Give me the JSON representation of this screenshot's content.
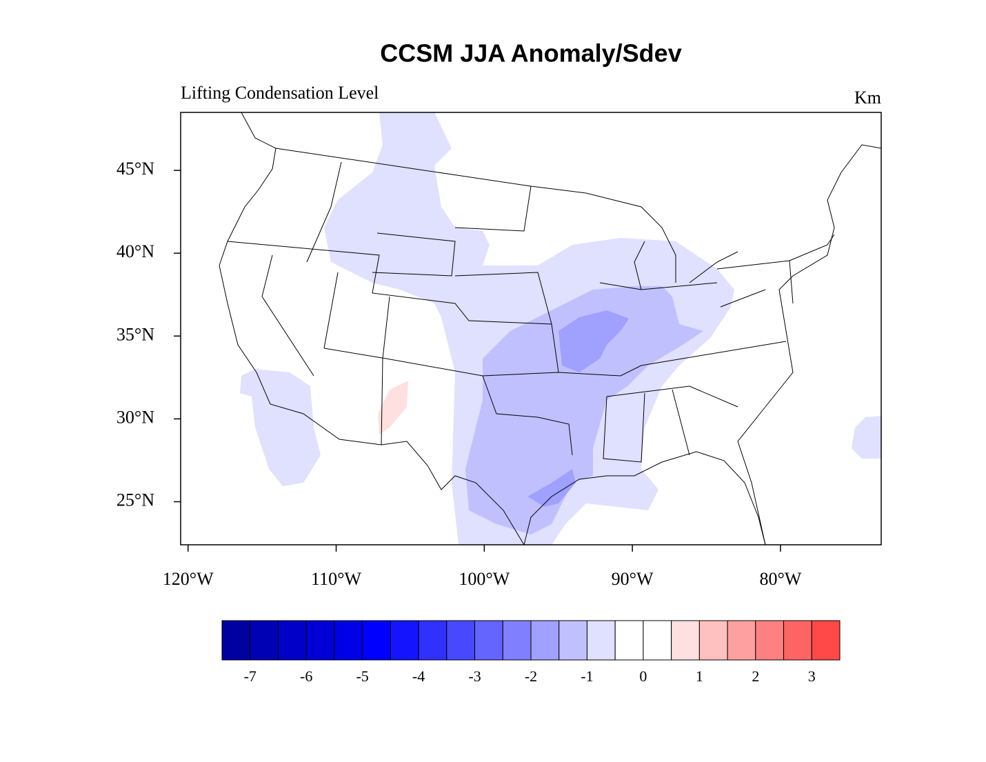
{
  "title": "CCSM JJA Anomaly/Sdev",
  "left_string": "Lifting Condensation Level",
  "right_string": "Km",
  "map": {
    "lon_range": [
      -120.5,
      -73.2
    ],
    "lat_range": [
      22.4,
      48.5
    ],
    "lat_ticks": [
      {
        "value": 45,
        "label": "45°N"
      },
      {
        "value": 40,
        "label": "40°N"
      },
      {
        "value": 35,
        "label": "35°N"
      },
      {
        "value": 30,
        "label": "30°N"
      },
      {
        "value": 25,
        "label": "25°N"
      }
    ],
    "lon_ticks": [
      {
        "value": -120,
        "label": "120°W"
      },
      {
        "value": -110,
        "label": "110°W"
      },
      {
        "value": -100,
        "label": "100°W"
      },
      {
        "value": -90,
        "label": "90°W"
      },
      {
        "value": -80,
        "label": "80°W"
      }
    ]
  },
  "colorbar": {
    "range": [
      -7.5,
      3.5
    ],
    "colors": [
      "#0000a0",
      "#0000b4",
      "#0000c8",
      "#0000d6",
      "#0000e6",
      "#0000ff",
      "#1414ff",
      "#3030ff",
      "#4848ff",
      "#6464ff",
      "#8080ff",
      "#a0a0ff",
      "#c0c0ff",
      "#e0e0ff",
      "#ffffff",
      "#ffffff",
      "#ffe0e0",
      "#ffc0c0",
      "#ffa0a0",
      "#ff8080",
      "#ff6464",
      "#ff4848"
    ],
    "labels": [
      -7,
      -6,
      -5,
      -4,
      -3,
      -2,
      -1,
      0,
      1,
      2,
      3
    ]
  }
}
